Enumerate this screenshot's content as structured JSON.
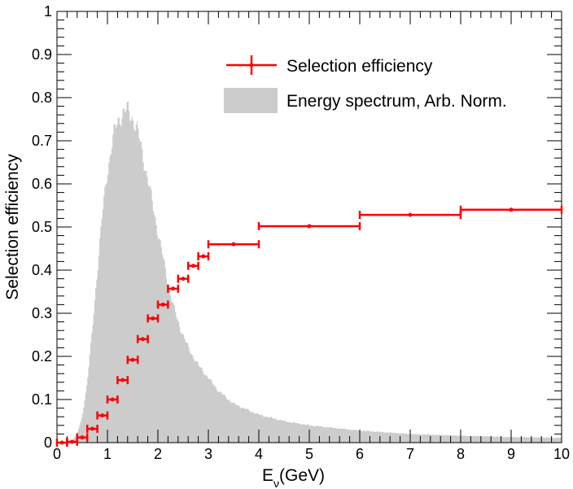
{
  "chart_data": {
    "type": "bar",
    "ylabel": "Selection efficiency",
    "xlabel": "E",
    "xlabel_subscript": "ν",
    "xlabel_unit": "(GeV)",
    "xlim": [
      0,
      10
    ],
    "ylim": [
      0,
      1
    ],
    "x_ticks": [
      "0",
      "1",
      "2",
      "3",
      "4",
      "5",
      "6",
      "7",
      "8",
      "9",
      "10"
    ],
    "y_ticks": [
      "0",
      "0.1",
      "0.2",
      "0.3",
      "0.4",
      "0.5",
      "0.6",
      "0.7",
      "0.8",
      "0.9",
      "1"
    ],
    "legend": {
      "position": "top-right",
      "entries": [
        {
          "label": "Selection efficiency",
          "color": "#ff0000",
          "style": "errorbar"
        },
        {
          "label": "Energy spectrum, Arb. Norm.",
          "color": "#cccccc",
          "style": "fill"
        }
      ]
    },
    "series": [
      {
        "name": "Selection efficiency",
        "color": "#ff0000",
        "points": [
          {
            "xlo": 0.0,
            "xhi": 0.2,
            "x": 0.1,
            "y": 0.0
          },
          {
            "xlo": 0.2,
            "xhi": 0.4,
            "x": 0.3,
            "y": 0.002
          },
          {
            "xlo": 0.4,
            "xhi": 0.6,
            "x": 0.5,
            "y": 0.012
          },
          {
            "xlo": 0.6,
            "xhi": 0.8,
            "x": 0.7,
            "y": 0.032
          },
          {
            "xlo": 0.8,
            "xhi": 1.0,
            "x": 0.9,
            "y": 0.063
          },
          {
            "xlo": 1.0,
            "xhi": 1.2,
            "x": 1.1,
            "y": 0.1
          },
          {
            "xlo": 1.2,
            "xhi": 1.4,
            "x": 1.3,
            "y": 0.145
          },
          {
            "xlo": 1.4,
            "xhi": 1.6,
            "x": 1.5,
            "y": 0.192
          },
          {
            "xlo": 1.6,
            "xhi": 1.8,
            "x": 1.7,
            "y": 0.24
          },
          {
            "xlo": 1.8,
            "xhi": 2.0,
            "x": 1.9,
            "y": 0.288
          },
          {
            "xlo": 2.0,
            "xhi": 2.2,
            "x": 2.1,
            "y": 0.32
          },
          {
            "xlo": 2.2,
            "xhi": 2.4,
            "x": 2.3,
            "y": 0.357
          },
          {
            "xlo": 2.4,
            "xhi": 2.6,
            "x": 2.5,
            "y": 0.38
          },
          {
            "xlo": 2.6,
            "xhi": 2.8,
            "x": 2.7,
            "y": 0.41
          },
          {
            "xlo": 2.8,
            "xhi": 3.0,
            "x": 2.9,
            "y": 0.432
          },
          {
            "xlo": 3.0,
            "xhi": 4.0,
            "x": 3.5,
            "y": 0.46
          },
          {
            "xlo": 4.0,
            "xhi": 6.0,
            "x": 5.0,
            "y": 0.502
          },
          {
            "xlo": 6.0,
            "xhi": 8.0,
            "x": 7.0,
            "y": 0.528
          },
          {
            "xlo": 8.0,
            "xhi": 10.0,
            "x": 9.0,
            "y": 0.54
          }
        ]
      },
      {
        "name": "Energy spectrum, Arb. Norm.",
        "color": "#cccccc",
        "curve": [
          [
            0.0,
            0.0
          ],
          [
            0.2,
            0.0
          ],
          [
            0.3,
            0.005
          ],
          [
            0.4,
            0.02
          ],
          [
            0.5,
            0.06
          ],
          [
            0.6,
            0.14
          ],
          [
            0.7,
            0.26
          ],
          [
            0.8,
            0.4
          ],
          [
            0.9,
            0.53
          ],
          [
            1.0,
            0.63
          ],
          [
            1.1,
            0.7
          ],
          [
            1.2,
            0.745
          ],
          [
            1.3,
            0.765
          ],
          [
            1.4,
            0.77
          ],
          [
            1.5,
            0.755
          ],
          [
            1.6,
            0.72
          ],
          [
            1.7,
            0.67
          ],
          [
            1.8,
            0.61
          ],
          [
            1.9,
            0.55
          ],
          [
            2.0,
            0.49
          ],
          [
            2.1,
            0.43
          ],
          [
            2.2,
            0.37
          ],
          [
            2.3,
            0.32
          ],
          [
            2.4,
            0.28
          ],
          [
            2.5,
            0.25
          ],
          [
            2.6,
            0.22
          ],
          [
            2.7,
            0.2
          ],
          [
            2.8,
            0.18
          ],
          [
            3.0,
            0.15
          ],
          [
            3.2,
            0.12
          ],
          [
            3.5,
            0.09
          ],
          [
            4.0,
            0.065
          ],
          [
            4.5,
            0.05
          ],
          [
            5.0,
            0.04
          ],
          [
            6.0,
            0.028
          ],
          [
            7.0,
            0.02
          ],
          [
            8.0,
            0.016
          ],
          [
            9.0,
            0.013
          ],
          [
            10.0,
            0.011
          ]
        ]
      }
    ]
  }
}
